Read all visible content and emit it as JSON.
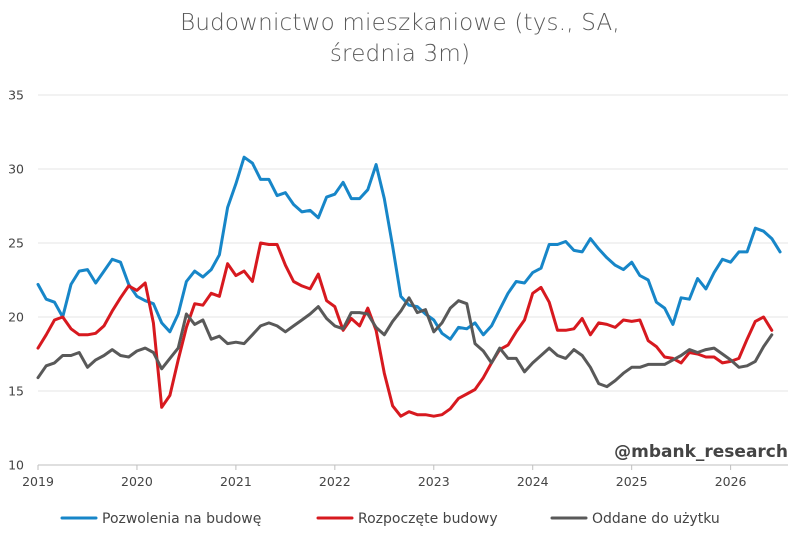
{
  "chart_data": {
    "type": "line",
    "title": "Budownictwo mieszkaniowe (tys., SA, średnia 3m)",
    "watermark": "@mbank_research",
    "xlabel": "",
    "ylabel": "",
    "ylim": [
      10,
      35
    ],
    "xlim": [
      2019.0,
      2026.58
    ],
    "y_ticks": [
      10,
      15,
      20,
      25,
      30,
      35
    ],
    "x_ticks": [
      {
        "value": 2019,
        "label": "2019"
      },
      {
        "value": 2020,
        "label": "2020"
      },
      {
        "value": 2021,
        "label": "2021"
      },
      {
        "value": 2022,
        "label": "2022"
      },
      {
        "value": 2023,
        "label": "2023"
      },
      {
        "value": 2024,
        "label": "2024"
      },
      {
        "value": 2025,
        "label": "2025"
      },
      {
        "value": 2026,
        "label": "2026"
      }
    ],
    "grid": {
      "horizontal": true,
      "vertical": false
    },
    "legend_position": "bottom",
    "x_start": "2019-01",
    "frequency": "monthly",
    "series": [
      {
        "name": "Pozwolenia na budowę",
        "color": "#1786c8",
        "values": [
          22.2,
          21.2,
          21.0,
          20.0,
          22.2,
          23.1,
          23.2,
          22.3,
          23.1,
          23.9,
          23.7,
          22.2,
          21.4,
          21.1,
          20.9,
          19.6,
          19.0,
          20.2,
          22.4,
          23.1,
          22.7,
          23.2,
          24.2,
          27.4,
          29.0,
          30.8,
          30.4,
          29.3,
          29.3,
          28.2,
          28.4,
          27.6,
          27.1,
          27.2,
          26.7,
          28.1,
          28.3,
          29.1,
          28.0,
          28.0,
          28.6,
          30.3,
          28.0,
          24.8,
          21.4,
          20.8,
          20.7,
          20.2,
          19.8,
          18.9,
          18.5,
          19.3,
          19.2,
          19.6,
          18.8,
          19.4,
          20.5,
          21.6,
          22.4,
          22.3,
          23.0,
          23.3,
          24.9,
          24.9,
          25.1,
          24.5,
          24.4,
          25.3,
          24.6,
          24.0,
          23.5,
          23.2,
          23.7,
          22.8,
          22.5,
          21.0,
          20.6,
          19.5,
          21.3,
          21.2,
          22.6,
          21.9,
          23.0,
          23.9,
          23.7,
          24.4,
          24.4,
          26.0,
          25.8,
          25.3,
          24.4
        ]
      },
      {
        "name": "Rozpoczęte budowy",
        "color": "#d7191f",
        "values": [
          17.9,
          18.8,
          19.8,
          20.0,
          19.2,
          18.8,
          18.8,
          18.9,
          19.4,
          20.4,
          21.3,
          22.1,
          21.8,
          22.3,
          19.6,
          13.9,
          14.7,
          17.1,
          19.3,
          20.9,
          20.8,
          21.6,
          21.4,
          23.6,
          22.8,
          23.1,
          22.4,
          25.0,
          24.9,
          24.9,
          23.5,
          22.4,
          22.1,
          21.9,
          22.9,
          21.1,
          20.7,
          19.1,
          19.9,
          19.4,
          20.6,
          19.1,
          16.2,
          14.0,
          13.3,
          13.6,
          13.4,
          13.4,
          13.3,
          13.4,
          13.8,
          14.5,
          14.8,
          15.1,
          15.9,
          16.9,
          17.8,
          18.1,
          19.0,
          19.8,
          21.6,
          22.0,
          21.0,
          19.1,
          19.1,
          19.2,
          19.9,
          18.8,
          19.6,
          19.5,
          19.3,
          19.8,
          19.7,
          19.8,
          18.4,
          18.0,
          17.3,
          17.2,
          16.9,
          17.6,
          17.5,
          17.3,
          17.3,
          16.9,
          17.0,
          17.2,
          18.5,
          19.7,
          20.0,
          19.1
        ]
      },
      {
        "name": "Oddane do użytku",
        "color": "#595959",
        "values": [
          15.9,
          16.7,
          16.9,
          17.4,
          17.4,
          17.6,
          16.6,
          17.1,
          17.4,
          17.8,
          17.4,
          17.3,
          17.7,
          17.9,
          17.6,
          16.5,
          17.2,
          17.9,
          20.2,
          19.5,
          19.8,
          18.5,
          18.7,
          18.2,
          18.3,
          18.2,
          18.8,
          19.4,
          19.6,
          19.4,
          19.0,
          19.4,
          19.8,
          20.2,
          20.7,
          19.9,
          19.4,
          19.2,
          20.3,
          20.3,
          20.2,
          19.3,
          18.8,
          19.7,
          20.4,
          21.3,
          20.3,
          20.5,
          19.0,
          19.6,
          20.6,
          21.1,
          20.9,
          18.2,
          17.7,
          16.9,
          17.9,
          17.2,
          17.2,
          16.3,
          16.9,
          17.4,
          17.9,
          17.4,
          17.2,
          17.8,
          17.4,
          16.6,
          15.5,
          15.3,
          15.7,
          16.2,
          16.6,
          16.6,
          16.8,
          16.8,
          16.8,
          17.1,
          17.4,
          17.8,
          17.6,
          17.8,
          17.9,
          17.5,
          17.1,
          16.6,
          16.7,
          17.0,
          18.0,
          18.8
        ]
      }
    ]
  }
}
